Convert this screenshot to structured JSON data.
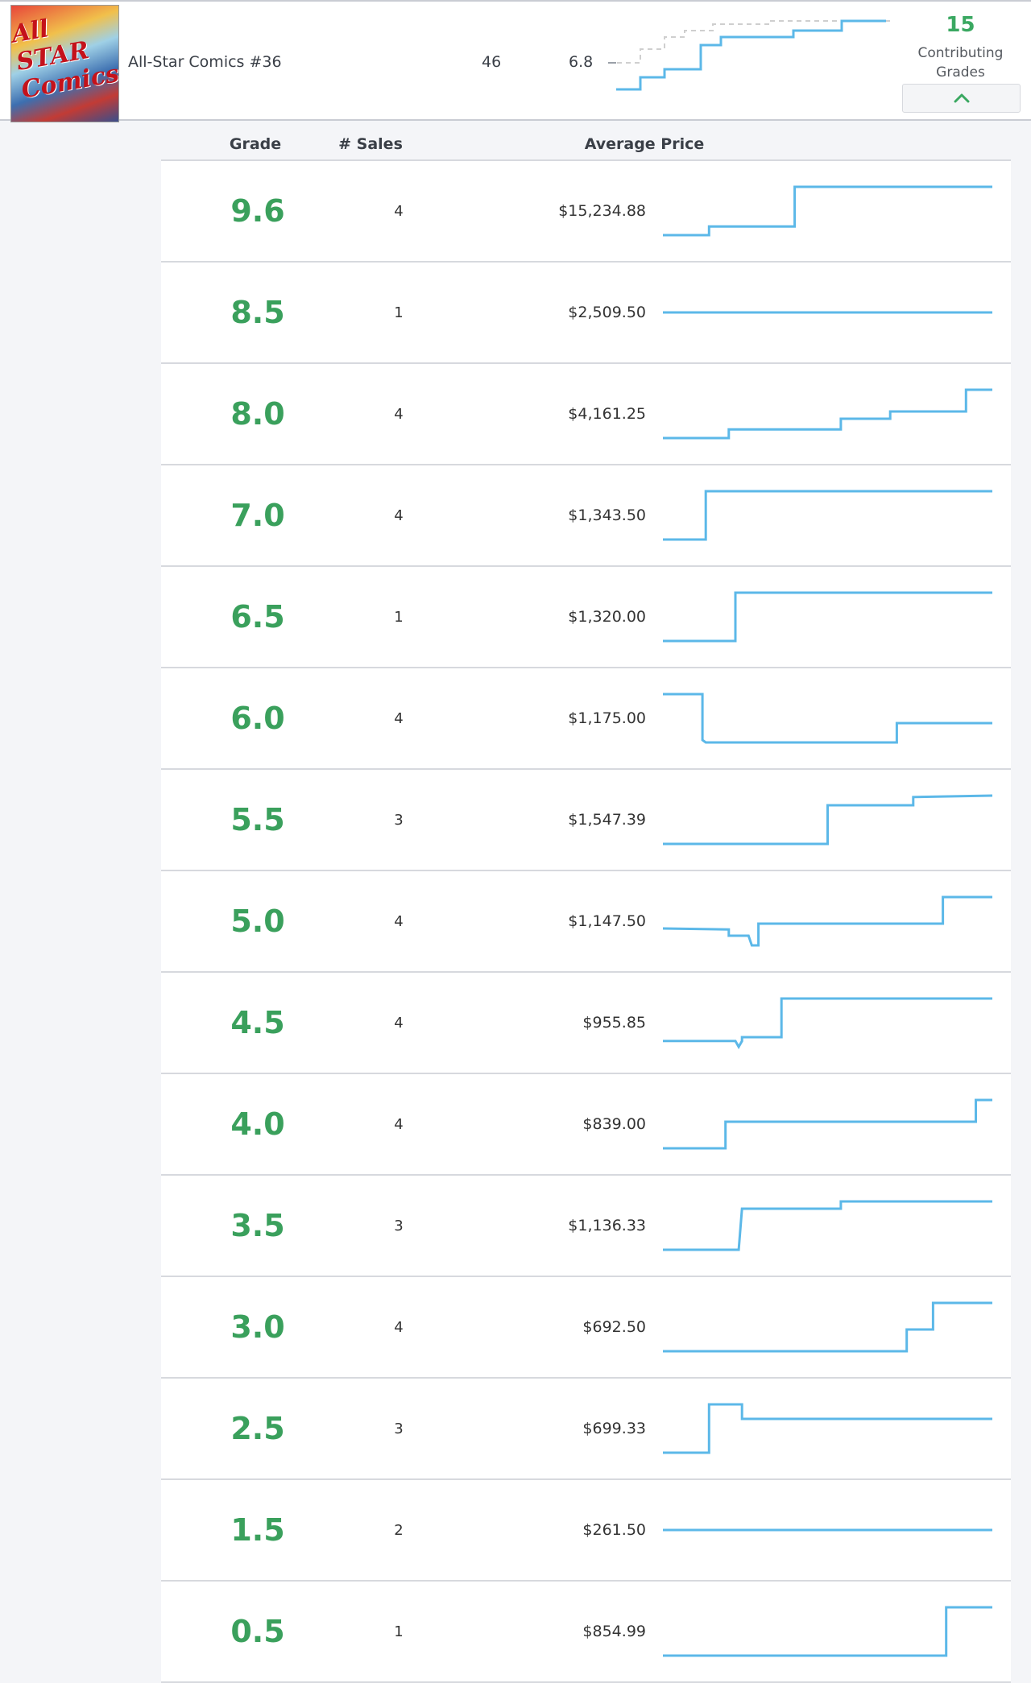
{
  "summary": {
    "title": "All-Star Comics #36",
    "cover_text": "All STAR Comics",
    "issue_count": "46",
    "avg_grade": "6.8",
    "contributing_count": "15",
    "contributing_label": "Contributing Grades",
    "collapse_icon": "chevron-up-icon"
  },
  "columns": {
    "grade": "Grade",
    "sales": "# Sales",
    "avg_price": "Average Price"
  },
  "colors": {
    "grade_green": "#3aa05c",
    "spark_blue": "#5cb8e8",
    "dashed_gray": "#cfcfcf"
  },
  "rows": [
    {
      "grade": "9.6",
      "sales": "4",
      "price": "$15,234.88",
      "trend": [
        [
          0,
          0
        ],
        [
          0.14,
          0
        ],
        [
          0.14,
          0.18
        ],
        [
          0.4,
          0.18
        ],
        [
          0.4,
          1
        ],
        [
          1,
          1
        ]
      ]
    },
    {
      "grade": "8.5",
      "sales": "1",
      "price": "$2,509.50",
      "trend": [
        [
          0,
          0.5
        ],
        [
          1,
          0.5
        ]
      ]
    },
    {
      "grade": "8.0",
      "sales": "4",
      "price": "$4,161.25",
      "trend": [
        [
          0,
          0
        ],
        [
          0.2,
          0
        ],
        [
          0.2,
          0.18
        ],
        [
          0.54,
          0.18
        ],
        [
          0.54,
          0.4
        ],
        [
          0.69,
          0.4
        ],
        [
          0.69,
          0.55
        ],
        [
          0.92,
          0.55
        ],
        [
          0.92,
          1
        ],
        [
          1,
          1
        ]
      ]
    },
    {
      "grade": "7.0",
      "sales": "4",
      "price": "$1,343.50",
      "trend": [
        [
          0,
          0
        ],
        [
          0.13,
          0
        ],
        [
          0.13,
          1
        ],
        [
          1,
          1
        ]
      ]
    },
    {
      "grade": "6.5",
      "sales": "1",
      "price": "$1,320.00",
      "trend": [
        [
          0,
          0
        ],
        [
          0.22,
          0
        ],
        [
          0.22,
          1
        ],
        [
          1,
          1
        ]
      ]
    },
    {
      "grade": "6.0",
      "sales": "4",
      "price": "$1,175.00",
      "trend": [
        [
          0,
          1
        ],
        [
          0.12,
          1
        ],
        [
          0.12,
          0.05
        ],
        [
          0.13,
          0
        ],
        [
          0.71,
          0
        ],
        [
          0.71,
          0.4
        ],
        [
          1,
          0.4
        ]
      ]
    },
    {
      "grade": "5.5",
      "sales": "3",
      "price": "$1,547.39",
      "trend": [
        [
          0,
          0
        ],
        [
          0.5,
          0
        ],
        [
          0.5,
          0.8
        ],
        [
          0.76,
          0.8
        ],
        [
          0.76,
          0.97
        ],
        [
          1,
          1
        ]
      ]
    },
    {
      "grade": "5.0",
      "sales": "4",
      "price": "$1,147.50",
      "trend": [
        [
          0,
          0.35
        ],
        [
          0.2,
          0.33
        ],
        [
          0.2,
          0.2
        ],
        [
          0.26,
          0.2
        ],
        [
          0.27,
          0
        ],
        [
          0.29,
          0
        ],
        [
          0.29,
          0.45
        ],
        [
          0.85,
          0.45
        ],
        [
          0.85,
          1
        ],
        [
          1,
          1
        ]
      ]
    },
    {
      "grade": "4.5",
      "sales": "4",
      "price": "$955.85",
      "trend": [
        [
          0,
          0.12
        ],
        [
          0.22,
          0.12
        ],
        [
          0.23,
          0
        ],
        [
          0.24,
          0.12
        ],
        [
          0.24,
          0.2
        ],
        [
          0.36,
          0.2
        ],
        [
          0.36,
          1
        ],
        [
          1,
          1
        ]
      ]
    },
    {
      "grade": "4.0",
      "sales": "4",
      "price": "$839.00",
      "trend": [
        [
          0,
          0
        ],
        [
          0.19,
          0
        ],
        [
          0.19,
          0.55
        ],
        [
          0.95,
          0.55
        ],
        [
          0.95,
          1
        ],
        [
          1,
          1
        ]
      ]
    },
    {
      "grade": "3.5",
      "sales": "3",
      "price": "$1,136.33",
      "trend": [
        [
          0,
          0
        ],
        [
          0.23,
          0
        ],
        [
          0.24,
          0.85
        ],
        [
          0.54,
          0.85
        ],
        [
          0.54,
          1
        ],
        [
          1,
          1
        ]
      ]
    },
    {
      "grade": "3.0",
      "sales": "4",
      "price": "$692.50",
      "trend": [
        [
          0,
          0
        ],
        [
          0.74,
          0
        ],
        [
          0.74,
          0.45
        ],
        [
          0.82,
          0.45
        ],
        [
          0.82,
          1
        ],
        [
          1,
          1
        ]
      ]
    },
    {
      "grade": "2.5",
      "sales": "3",
      "price": "$699.33",
      "trend": [
        [
          0,
          0
        ],
        [
          0.14,
          0
        ],
        [
          0.14,
          1
        ],
        [
          0.24,
          1
        ],
        [
          0.24,
          0.7
        ],
        [
          1,
          0.7
        ]
      ]
    },
    {
      "grade": "1.5",
      "sales": "2",
      "price": "$261.50",
      "trend": [
        [
          0,
          0.5
        ],
        [
          1,
          0.5
        ]
      ]
    },
    {
      "grade": "0.5",
      "sales": "1",
      "price": "$854.99",
      "trend": [
        [
          0,
          0
        ],
        [
          0.86,
          0
        ],
        [
          0.86,
          1
        ],
        [
          1,
          1
        ]
      ]
    }
  ]
}
